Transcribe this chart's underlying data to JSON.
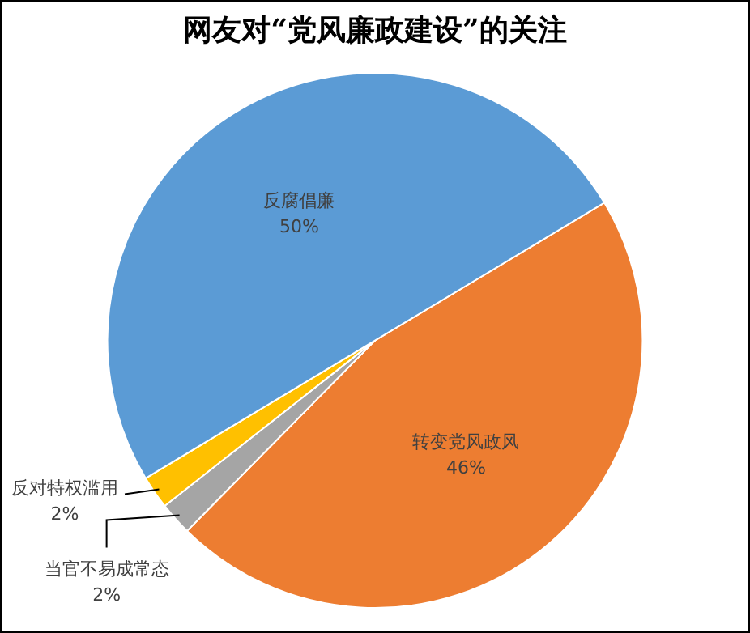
{
  "chart_data": {
    "type": "pie",
    "title": "网友对“党风廉政建设”的关注",
    "categories": [
      "转变党风政风",
      "当官不易成常态",
      "反对特权滥用",
      "反腐倡廉"
    ],
    "values": [
      46,
      2,
      2,
      50
    ],
    "value_labels": [
      "46%",
      "2%",
      "2%",
      "50%"
    ],
    "colors": [
      "#ed7d31",
      "#a5a5a5",
      "#ffc000",
      "#5b9bd5"
    ],
    "legend": false
  }
}
